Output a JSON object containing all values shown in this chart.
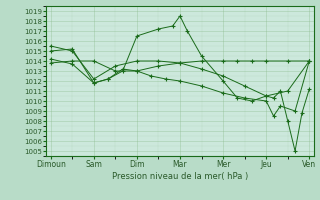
{
  "x_labels": [
    "Dimoun",
    "Sam",
    "Dim",
    "Mar",
    "Mer",
    "Jeu",
    "Ven"
  ],
  "x_positions": [
    0,
    1,
    2,
    3,
    4,
    5,
    6
  ],
  "series": [
    {
      "name": "s1_zigzag",
      "x": [
        0,
        0.5,
        1,
        1.33,
        1.67,
        2,
        2.5,
        2.83,
        3,
        3.17,
        3.5,
        4,
        4.33,
        4.67,
        5,
        5.5,
        6
      ],
      "y": [
        1015.0,
        1015.2,
        1011.8,
        1012.2,
        1013.0,
        1016.5,
        1017.2,
        1017.5,
        1018.5,
        1017.0,
        1014.5,
        1012.0,
        1010.3,
        1010.0,
        1010.5,
        1011.0,
        1014.0
      ]
    },
    {
      "name": "s2_flat",
      "x": [
        0,
        0.5,
        1,
        1.5,
        2,
        2.5,
        3,
        3.5,
        4,
        4.33,
        4.67,
        5,
        5.5,
        6
      ],
      "y": [
        1013.8,
        1014.0,
        1014.0,
        1013.0,
        1013.0,
        1013.5,
        1013.8,
        1014.0,
        1014.0,
        1014.0,
        1014.0,
        1014.0,
        1014.0,
        1014.0
      ]
    },
    {
      "name": "s3_decline",
      "x": [
        0,
        0.5,
        1,
        1.5,
        2,
        2.5,
        3,
        3.5,
        4,
        4.5,
        5,
        5.17,
        5.33,
        5.5,
        5.67,
        5.83,
        6
      ],
      "y": [
        1015.5,
        1015.0,
        1012.2,
        1013.5,
        1014.0,
        1014.0,
        1013.8,
        1013.2,
        1012.5,
        1011.5,
        1010.5,
        1010.3,
        1011.0,
        1008.0,
        1005.0,
        1008.8,
        1011.2
      ]
    },
    {
      "name": "s4_low",
      "x": [
        0,
        0.5,
        1,
        1.33,
        1.67,
        2,
        2.33,
        2.67,
        3,
        3.5,
        4,
        4.5,
        5,
        5.17,
        5.33,
        5.67,
        6
      ],
      "y": [
        1014.2,
        1013.7,
        1011.8,
        1012.2,
        1013.2,
        1013.0,
        1012.5,
        1012.2,
        1012.0,
        1011.5,
        1010.8,
        1010.3,
        1010.0,
        1008.5,
        1009.5,
        1009.0,
        1014.0
      ]
    }
  ],
  "ylim": [
    1004.5,
    1019.5
  ],
  "yticks": [
    1005,
    1006,
    1007,
    1008,
    1009,
    1010,
    1011,
    1012,
    1013,
    1014,
    1015,
    1016,
    1017,
    1018,
    1019
  ],
  "xlabel": "Pression niveau de la mer( hPa )",
  "line_color": "#1a6b1a",
  "bg_color": "#cce8dc",
  "grid_color": "#88b888",
  "fig_bg": "#b8dcc8",
  "tick_color": "#2a5a2a"
}
